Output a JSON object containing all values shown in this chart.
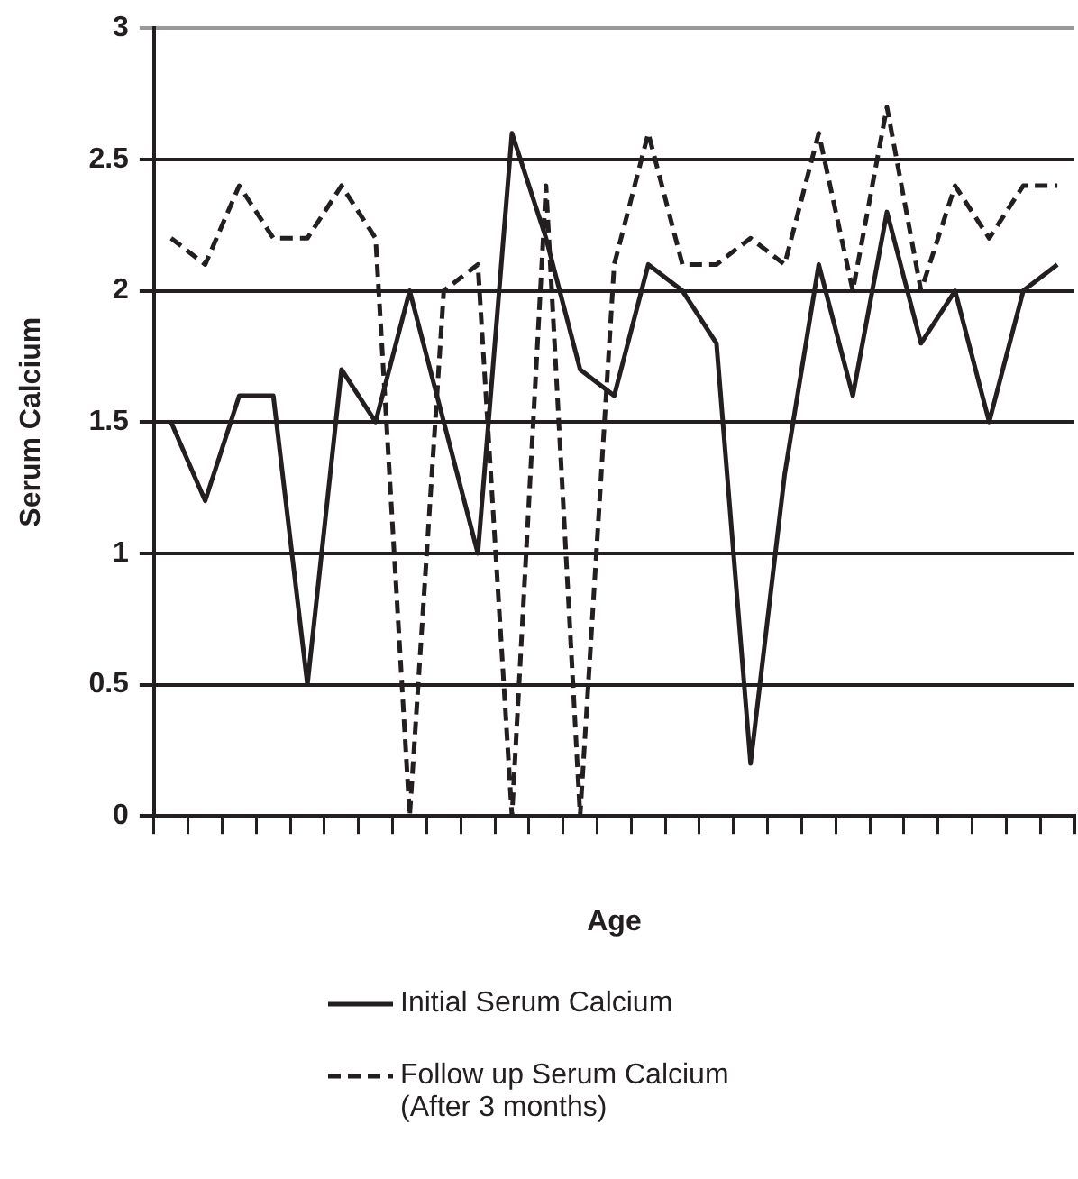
{
  "chart_data": {
    "type": "line",
    "xlabel": "Age",
    "ylabel": "Serum Calcium",
    "categories": [
      null,
      null,
      null,
      null,
      null,
      null,
      null,
      null,
      null,
      null,
      null,
      null,
      null,
      null,
      null,
      null,
      null,
      null,
      null,
      null,
      null,
      null,
      null,
      null,
      null,
      null,
      null
    ],
    "series": [
      {
        "name": "Initial Serum Calcium",
        "color": "#231f20",
        "line_style": "solid",
        "values": [
          1.5,
          1.2,
          1.6,
          1.6,
          0.5,
          1.7,
          1.5,
          2.0,
          1.5,
          1.0,
          2.6,
          2.2,
          1.7,
          1.6,
          2.1,
          2.0,
          1.8,
          0.2,
          1.3,
          2.1,
          1.6,
          2.3,
          1.8,
          2.0,
          1.5,
          2.0,
          2.1
        ]
      },
      {
        "name": "Follow up Serum Calcium (After 3 months)",
        "color": "#231f20",
        "line_style": "dashed",
        "values": [
          2.2,
          2.1,
          2.4,
          2.2,
          2.2,
          2.4,
          2.2,
          0,
          2.0,
          2.1,
          0,
          2.4,
          0,
          2.1,
          2.6,
          2.1,
          2.1,
          2.2,
          2.1,
          2.6,
          2.0,
          2.7,
          2.0,
          2.4,
          2.2,
          2.4,
          2.4
        ]
      }
    ],
    "ylim": [
      0,
      3
    ],
    "yticks": [
      0,
      0.5,
      1,
      1.5,
      2,
      2.5,
      3
    ],
    "grid": "y",
    "legend": "bottom",
    "marker": "none"
  }
}
